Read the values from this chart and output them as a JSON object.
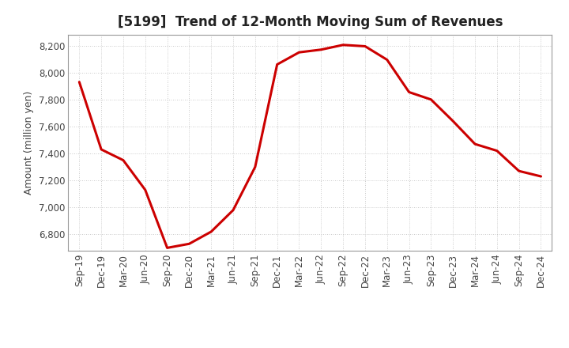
{
  "title": "[5199]  Trend of 12-Month Moving Sum of Revenues",
  "ylabel": "Amount (million yen)",
  "line_color": "#cc0000",
  "line_width": 2.2,
  "background_color": "#ffffff",
  "plot_bg_color": "#ffffff",
  "grid_color": "#bbbbbb",
  "ylim": [
    6680,
    8280
  ],
  "yticks": [
    6800,
    7000,
    7200,
    7400,
    7600,
    7800,
    8000,
    8200
  ],
  "x_labels": [
    "Sep-19",
    "Dec-19",
    "Mar-20",
    "Jun-20",
    "Sep-20",
    "Dec-20",
    "Mar-21",
    "Jun-21",
    "Sep-21",
    "Dec-21",
    "Mar-22",
    "Jun-22",
    "Sep-22",
    "Dec-22",
    "Mar-23",
    "Jun-23",
    "Sep-23",
    "Dec-23",
    "Mar-24",
    "Jun-24",
    "Sep-24",
    "Dec-24"
  ],
  "values": [
    7930,
    7430,
    7350,
    7130,
    6700,
    6730,
    6820,
    6980,
    7300,
    8060,
    8150,
    8170,
    8205,
    8195,
    8095,
    7855,
    7800,
    7640,
    7470,
    7420,
    7270,
    7230
  ],
  "title_fontsize": 12,
  "axis_label_fontsize": 9,
  "tick_fontsize": 8.5
}
